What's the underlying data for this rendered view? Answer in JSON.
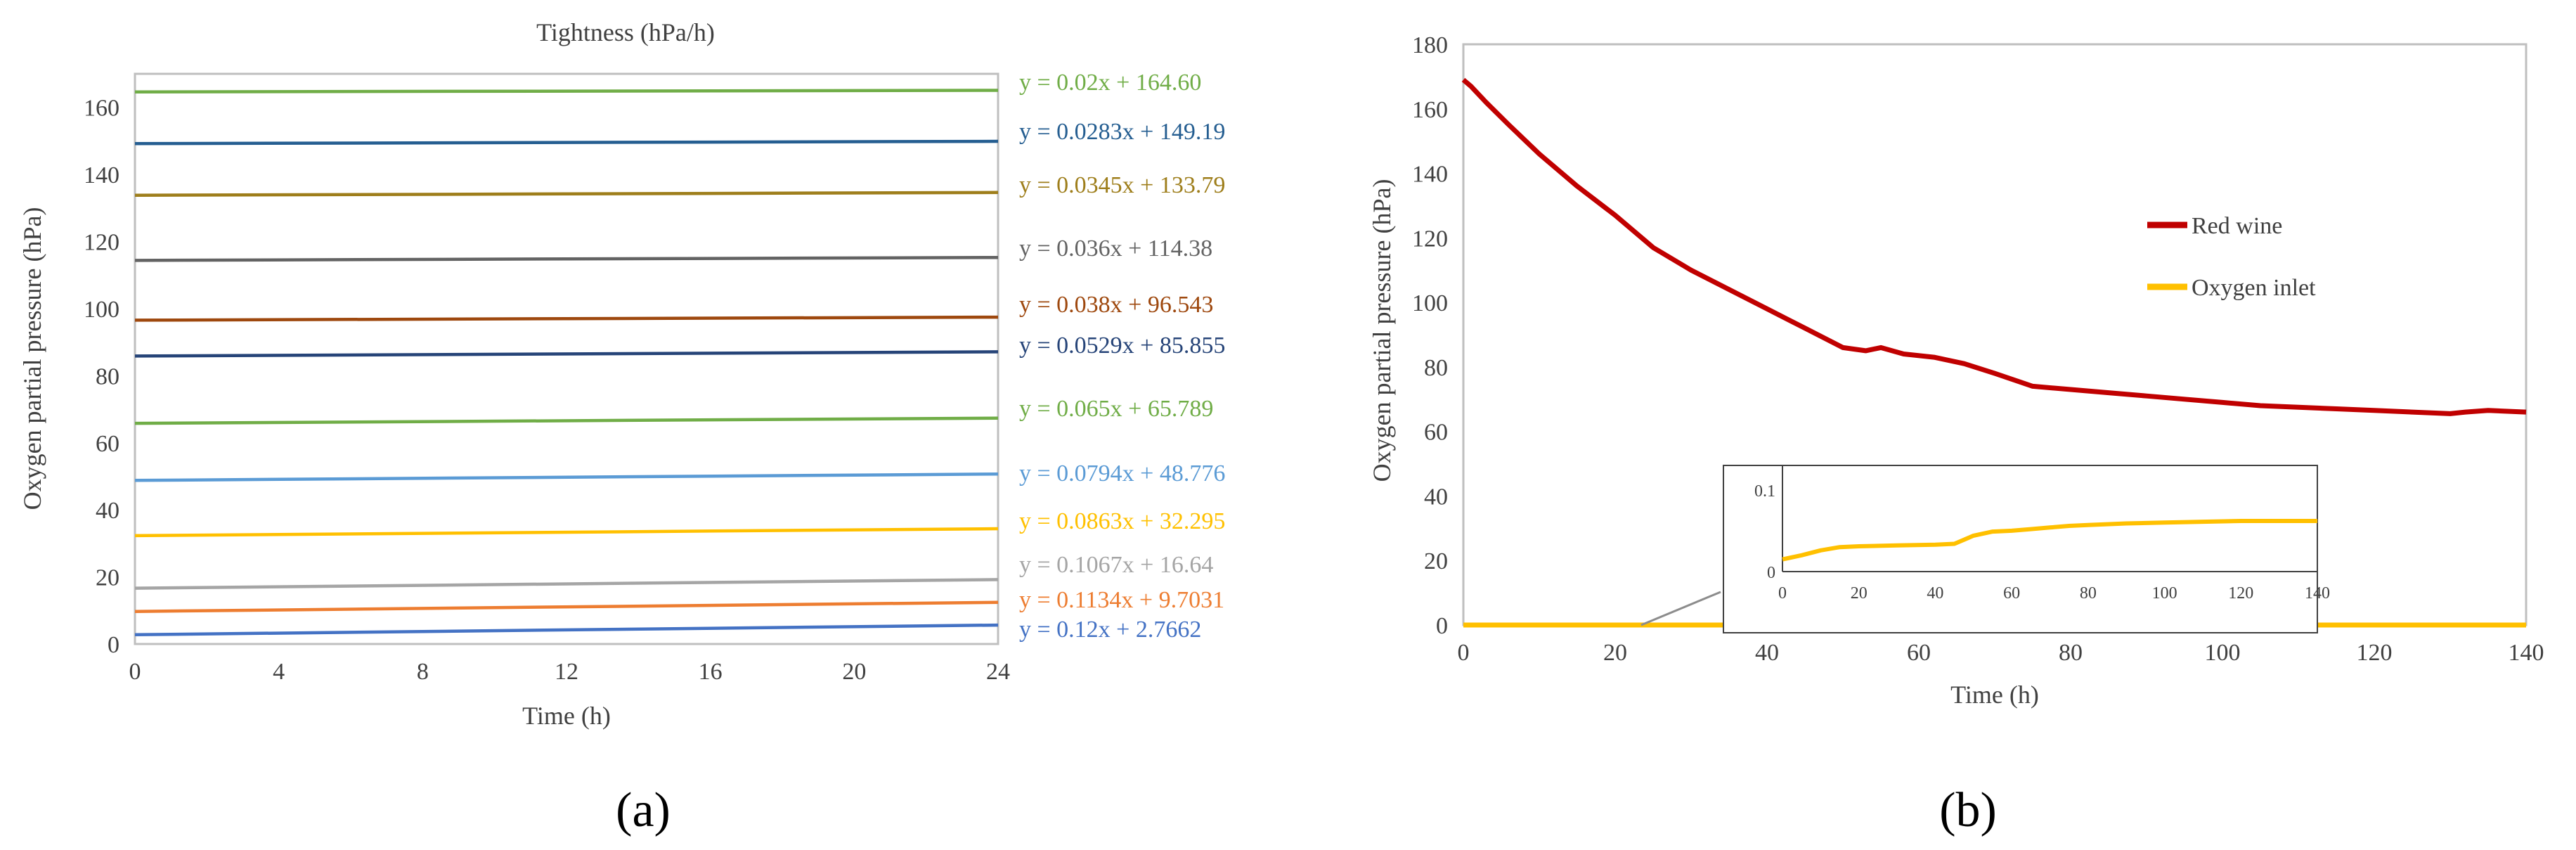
{
  "chart_data": [
    {
      "type": "line",
      "panel_label": "(a)",
      "title": "Tightness (hPa/h)",
      "xlabel": "Time (h)",
      "ylabel": "Oxygen partial pressure (hPa)",
      "xlim": [
        0,
        24
      ],
      "ylim": [
        0,
        170
      ],
      "xticks": [
        "0",
        "4",
        "8",
        "12",
        "16",
        "20",
        "24"
      ],
      "yticks": [
        "0",
        "20",
        "40",
        "60",
        "80",
        "100",
        "120",
        "140",
        "160"
      ],
      "series": [
        {
          "slope": 0.02,
          "intercept": 164.6,
          "equation": "y = 0.02x + 164.60",
          "color": "#70AD47"
        },
        {
          "slope": 0.0283,
          "intercept": 149.19,
          "equation": "y = 0.0283x + 149.19",
          "color": "#255E91"
        },
        {
          "slope": 0.0345,
          "intercept": 133.79,
          "equation": "y = 0.0345x + 133.79",
          "color": "#9E7E1B"
        },
        {
          "slope": 0.036,
          "intercept": 114.38,
          "equation": "y = 0.036x + 114.38",
          "color": "#636363"
        },
        {
          "slope": 0.038,
          "intercept": 96.543,
          "equation": "y = 0.038x + 96.543",
          "color": "#9E480E"
        },
        {
          "slope": 0.0529,
          "intercept": 85.855,
          "equation": "y = 0.0529x + 85.855",
          "color": "#264478"
        },
        {
          "slope": 0.065,
          "intercept": 65.789,
          "equation": "y = 0.065x + 65.789",
          "color": "#70AD47"
        },
        {
          "slope": 0.0794,
          "intercept": 48.776,
          "equation": "y = 0.0794x + 48.776",
          "color": "#5B9BD5"
        },
        {
          "slope": 0.0863,
          "intercept": 32.295,
          "equation": "y = 0.0863x + 32.295",
          "color": "#FFC000"
        },
        {
          "slope": 0.1067,
          "intercept": 16.64,
          "equation": "y = 0.1067x + 16.64",
          "color": "#A5A5A5"
        },
        {
          "slope": 0.1134,
          "intercept": 9.7031,
          "equation": "y = 0.1134x + 9.7031",
          "color": "#ED7D31"
        },
        {
          "slope": 0.12,
          "intercept": 2.7662,
          "equation": "y = 0.12x + 2.7662",
          "color": "#4472C4"
        }
      ]
    },
    {
      "type": "line",
      "panel_label": "(b)",
      "xlabel": "Time (h)",
      "ylabel": "Oxygen partial pressure (hPa)",
      "xlim": [
        0,
        140
      ],
      "ylim": [
        0,
        180
      ],
      "xticks": [
        "0",
        "20",
        "40",
        "60",
        "80",
        "100",
        "120",
        "140"
      ],
      "yticks": [
        "0",
        "20",
        "40",
        "60",
        "80",
        "100",
        "120",
        "140",
        "160",
        "180"
      ],
      "legend": [
        "Red wine",
        "Oxygen inlet"
      ],
      "series": [
        {
          "name": "Red wine",
          "color": "#C00000",
          "x": [
            0,
            1,
            3,
            6,
            10,
            15,
            20,
            25,
            30,
            35,
            40,
            45,
            50,
            53,
            55,
            58,
            62,
            66,
            70,
            75,
            80,
            85,
            90,
            95,
            100,
            105,
            110,
            115,
            120,
            125,
            130,
            132,
            135,
            140
          ],
          "y": [
            169,
            167,
            162,
            155,
            146,
            136,
            127,
            117,
            110,
            104,
            98,
            92,
            86,
            85,
            86,
            84,
            83,
            81,
            78,
            74,
            73,
            72,
            71,
            70,
            69,
            68,
            67.5,
            67,
            66.5,
            66,
            65.5,
            66,
            66.5,
            66
          ]
        },
        {
          "name": "Oxygen inlet",
          "color": "#FFC000",
          "x": [
            0,
            140
          ],
          "y": [
            0,
            0
          ]
        }
      ],
      "inset": {
        "xlim": [
          0,
          140
        ],
        "ylim": [
          0,
          0.13
        ],
        "xticks": [
          "0",
          "20",
          "40",
          "60",
          "80",
          "100",
          "120",
          "140"
        ],
        "yticks": [
          "0",
          "0.1"
        ],
        "series": {
          "name": "Oxygen inlet",
          "color": "#FFC000",
          "x": [
            0,
            5,
            10,
            15,
            20,
            30,
            40,
            45,
            47,
            50,
            55,
            60,
            65,
            70,
            75,
            80,
            90,
            100,
            110,
            120,
            130,
            140
          ],
          "y": [
            0.015,
            0.02,
            0.026,
            0.03,
            0.031,
            0.032,
            0.033,
            0.034,
            0.038,
            0.044,
            0.049,
            0.05,
            0.052,
            0.054,
            0.056,
            0.057,
            0.059,
            0.06,
            0.061,
            0.062,
            0.062,
            0.062
          ]
        }
      }
    }
  ]
}
